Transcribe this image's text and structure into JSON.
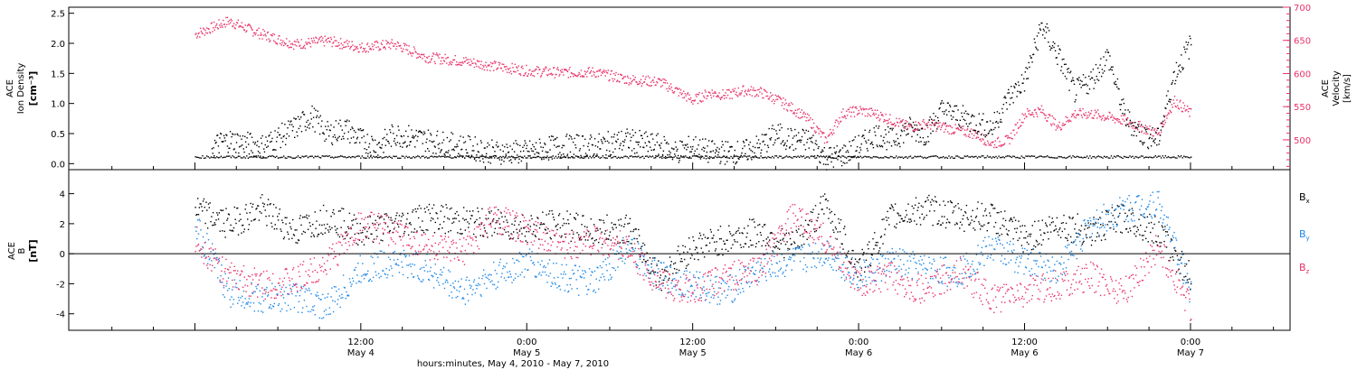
{
  "chart_data": [
    {
      "type": "scatter",
      "panel": "top",
      "ylabel_left": [
        "ACE",
        "Ion Density",
        "[cm⁻³]"
      ],
      "ylabel_right": [
        "ACE",
        "Velocity",
        "[km/s]"
      ],
      "ylim_left": [
        -0.1,
        2.6
      ],
      "ylim_right": [
        455,
        700
      ],
      "yticks_left": [
        "0.0",
        "0.5",
        "1.0",
        "1.5",
        "2.0",
        "2.5"
      ],
      "yticks_right": [
        "500",
        "550",
        "600",
        "650",
        "700"
      ],
      "series": [
        {
          "axis": "left",
          "color": "#000000",
          "x": [
            0.05,
            0.1,
            0.2,
            0.3,
            0.35,
            0.4,
            0.45,
            0.5,
            0.55,
            0.6,
            0.7,
            0.8,
            0.9,
            1.0,
            1.1,
            1.2,
            1.3,
            1.4,
            1.45,
            1.5,
            1.55,
            1.6,
            1.65,
            1.7,
            1.75,
            1.8,
            1.85,
            1.9,
            1.95,
            2.0,
            2.05,
            2.1,
            2.15,
            2.2,
            2.25,
            2.3,
            2.35,
            2.4,
            2.45,
            2.5,
            2.55,
            2.6,
            2.65,
            2.7,
            2.75,
            2.8,
            2.85,
            2.9,
            2.95,
            3.0
          ],
          "values": [
            0.3,
            0.4,
            0.3,
            0.6,
            0.8,
            0.5,
            0.6,
            0.4,
            0.3,
            0.5,
            0.4,
            0.3,
            0.2,
            0.2,
            0.3,
            0.3,
            0.4,
            0.3,
            0.2,
            0.3,
            0.2,
            0.2,
            0.2,
            0.3,
            0.5,
            0.4,
            0.4,
            0.1,
            0.15,
            0.3,
            0.5,
            0.4,
            0.6,
            0.5,
            0.9,
            0.8,
            0.7,
            0.6,
            1.1,
            1.4,
            2.3,
            1.8,
            1.2,
            1.4,
            1.8,
            0.8,
            0.5,
            0.4,
            1.5,
            2.0
          ]
        },
        {
          "axis": "right",
          "color": "#e8336a",
          "x": [
            0.0,
            0.1,
            0.2,
            0.3,
            0.4,
            0.5,
            0.6,
            0.7,
            0.8,
            0.9,
            1.0,
            1.1,
            1.2,
            1.3,
            1.4,
            1.45,
            1.5,
            1.55,
            1.6,
            1.65,
            1.7,
            1.75,
            1.8,
            1.85,
            1.9,
            1.95,
            2.0,
            2.05,
            2.1,
            2.15,
            2.2,
            2.25,
            2.3,
            2.35,
            2.4,
            2.45,
            2.5,
            2.55,
            2.6,
            2.65,
            2.7,
            2.75,
            2.8,
            2.85,
            2.9,
            2.95,
            3.0
          ],
          "values": [
            660,
            680,
            660,
            645,
            650,
            640,
            645,
            625,
            620,
            612,
            605,
            602,
            603,
            592,
            588,
            575,
            560,
            572,
            568,
            575,
            573,
            562,
            548,
            530,
            500,
            540,
            545,
            540,
            530,
            520,
            525,
            520,
            515,
            510,
            495,
            500,
            540,
            545,
            520,
            540,
            540,
            535,
            530,
            520,
            510,
            560,
            540
          ]
        }
      ]
    },
    {
      "type": "scatter",
      "panel": "bottom",
      "ylabel_left": [
        "ACE",
        "B",
        "[nT]"
      ],
      "ylim": [
        -5.1,
        5.6
      ],
      "yticks": [
        "-4",
        "-2",
        "0",
        "2",
        "4"
      ],
      "xtick_labels": [
        {
          "time": "12:00",
          "date": "May 4"
        },
        {
          "time": "0:00",
          "date": "May 5"
        },
        {
          "time": "12:00",
          "date": "May 5"
        },
        {
          "time": "0:00",
          "date": "May 6"
        },
        {
          "time": "12:00",
          "date": "May 6"
        },
        {
          "time": "0:00",
          "date": "May 7"
        }
      ],
      "xlabel": "hours:minutes, May  4, 2010 - May  7, 2010",
      "legend_position": "right",
      "series": [
        {
          "name": "Bx",
          "color": "#000000",
          "x": [
            0.0,
            0.1,
            0.2,
            0.3,
            0.4,
            0.5,
            0.6,
            0.7,
            0.8,
            0.9,
            1.0,
            1.1,
            1.2,
            1.3,
            1.4,
            1.5,
            1.6,
            1.7,
            1.8,
            1.9,
            2.0,
            2.1,
            2.2,
            2.3,
            2.4,
            2.5,
            2.6,
            2.7,
            2.8,
            2.9,
            3.0
          ],
          "values": [
            3.0,
            2.0,
            3.0,
            1.5,
            2.5,
            1.5,
            2.0,
            2.5,
            2.2,
            2.0,
            1.8,
            2.0,
            1.5,
            1.8,
            -1.5,
            0.5,
            1.0,
            1.5,
            0.5,
            3.3,
            -1.0,
            2.5,
            3.0,
            2.5,
            2.5,
            1.0,
            2.0,
            1.5,
            2.5,
            1.5,
            -1.5
          ]
        },
        {
          "name": "By",
          "color": "#1e88e5",
          "x": [
            0.0,
            0.1,
            0.2,
            0.3,
            0.4,
            0.5,
            0.6,
            0.7,
            0.8,
            0.9,
            1.0,
            1.1,
            1.2,
            1.3,
            1.4,
            1.5,
            1.6,
            1.7,
            1.8,
            1.9,
            2.0,
            2.1,
            2.2,
            2.3,
            2.4,
            2.5,
            2.6,
            2.7,
            2.8,
            2.9,
            3.0
          ],
          "values": [
            2.0,
            -2.5,
            -3.0,
            -2.8,
            -3.5,
            -1.0,
            -0.5,
            -1.0,
            -2.5,
            -1.5,
            -0.5,
            -1.5,
            -2.0,
            0.5,
            -1.5,
            -2.0,
            -2.5,
            -1.0,
            -0.5,
            0.2,
            -1.5,
            -0.5,
            -1.0,
            -1.2,
            0.5,
            -0.5,
            -1.0,
            2.0,
            3.0,
            3.5,
            -2.5
          ]
        },
        {
          "name": "Bz",
          "color": "#e8336a",
          "x": [
            0.0,
            0.1,
            0.2,
            0.3,
            0.4,
            0.5,
            0.6,
            0.7,
            0.8,
            0.9,
            1.0,
            1.1,
            1.2,
            1.3,
            1.4,
            1.5,
            1.6,
            1.7,
            1.8,
            1.9,
            2.0,
            2.1,
            2.2,
            2.3,
            2.4,
            2.5,
            2.6,
            2.7,
            2.8,
            2.9,
            3.0
          ],
          "values": [
            1.0,
            -1.5,
            -2.0,
            -1.8,
            -0.5,
            2.0,
            1.5,
            0.5,
            0.0,
            2.5,
            1.5,
            0.5,
            1.0,
            0.5,
            -2.0,
            -2.5,
            -1.5,
            -1.0,
            2.5,
            1.0,
            -2.0,
            -1.5,
            -2.5,
            -1.0,
            -3.0,
            -2.5,
            -2.0,
            -1.5,
            -2.5,
            0.5,
            -3.5
          ]
        }
      ]
    }
  ],
  "legend_labels": [
    "B",
    "B",
    "B"
  ],
  "legend_subs": [
    "x",
    "y",
    "z"
  ]
}
